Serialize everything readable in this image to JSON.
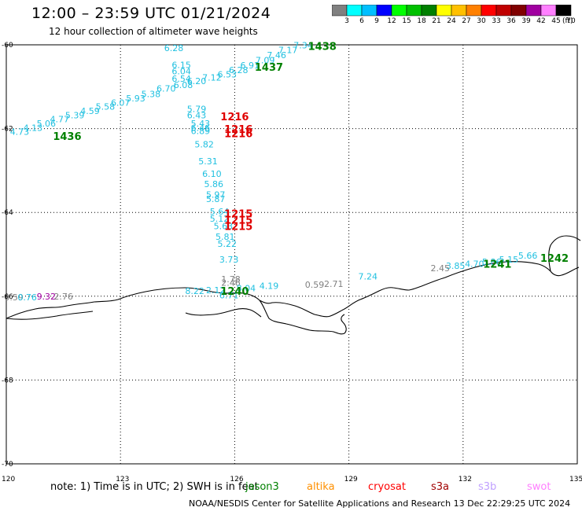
{
  "title": "12:00 – 23:59 UTC 01/21/2024",
  "subtitle": "12 hour collection of altimeter wave heights",
  "colorbar": {
    "unit": "(ft)",
    "colors": [
      "#808080",
      "#00ffff",
      "#00bfff",
      "#0000ff",
      "#00ff00",
      "#00c000",
      "#008000",
      "#ffff00",
      "#ffc000",
      "#ff8000",
      "#ff0000",
      "#c00000",
      "#800000",
      "#a000a0",
      "#ff80ff",
      "#000000"
    ],
    "labels": [
      "3",
      "6",
      "9",
      "12",
      "15",
      "18",
      "21",
      "24",
      "27",
      "30",
      "33",
      "36",
      "39",
      "42",
      "45",
      "70"
    ]
  },
  "axes": {
    "lat_labels": [
      "-60",
      "-62",
      "-64",
      "-66",
      "-68",
      "-70"
    ],
    "lon_labels": [
      "120",
      "123",
      "126",
      "129",
      "132",
      "135"
    ]
  },
  "wave_labels": [
    {
      "text": "6.28",
      "lon": 124.4,
      "lat": -60.15,
      "color": "#20c0e0"
    },
    {
      "text": "6.15",
      "lon": 124.6,
      "lat": -60.55,
      "color": "#20c0e0"
    },
    {
      "text": "6.04",
      "lon": 124.6,
      "lat": -60.7,
      "color": "#20c0e0"
    },
    {
      "text": "7.12",
      "lon": 125.4,
      "lat": -60.85,
      "color": "#20c0e0"
    },
    {
      "text": "6.53",
      "lon": 125.8,
      "lat": -60.78,
      "color": "#20c0e0"
    },
    {
      "text": "6.28",
      "lon": 126.1,
      "lat": -60.68,
      "color": "#20c0e0"
    },
    {
      "text": "6.91",
      "lon": 126.4,
      "lat": -60.56,
      "color": "#20c0e0"
    },
    {
      "text": "7.09",
      "lon": 126.8,
      "lat": -60.44,
      "color": "#20c0e0"
    },
    {
      "text": "7.46",
      "lon": 127.1,
      "lat": -60.32,
      "color": "#20c0e0"
    },
    {
      "text": "7.17",
      "lon": 127.4,
      "lat": -60.2,
      "color": "#20c0e0"
    },
    {
      "text": "7.34",
      "lon": 127.8,
      "lat": -60.08,
      "color": "#20c0e0"
    },
    {
      "text": "6.54",
      "lon": 124.6,
      "lat": -60.88,
      "color": "#20c0e0"
    },
    {
      "text": "6.20",
      "lon": 125.0,
      "lat": -60.94,
      "color": "#20c0e0"
    },
    {
      "text": "6.08",
      "lon": 124.65,
      "lat": -61.03,
      "color": "#20c0e0"
    },
    {
      "text": "6.70",
      "lon": 124.2,
      "lat": -61.12,
      "color": "#20c0e0"
    },
    {
      "text": "5.38",
      "lon": 123.8,
      "lat": -61.25,
      "color": "#20c0e0"
    },
    {
      "text": "5.93",
      "lon": 123.4,
      "lat": -61.35,
      "color": "#20c0e0"
    },
    {
      "text": "6.07",
      "lon": 123.0,
      "lat": -61.45,
      "color": "#20c0e0"
    },
    {
      "text": "5.58",
      "lon": 122.6,
      "lat": -61.55,
      "color": "#20c0e0"
    },
    {
      "text": "4.59",
      "lon": 122.2,
      "lat": -61.65,
      "color": "#20c0e0"
    },
    {
      "text": "5.39",
      "lon": 121.8,
      "lat": -61.75,
      "color": "#20c0e0"
    },
    {
      "text": "4.77",
      "lon": 121.4,
      "lat": -61.85,
      "color": "#20c0e0"
    },
    {
      "text": "5.06",
      "lon": 121.05,
      "lat": -61.95,
      "color": "#20c0e0"
    },
    {
      "text": "4.13",
      "lon": 120.7,
      "lat": -62.05,
      "color": "#20c0e0"
    },
    {
      "text": "4.73",
      "lon": 120.35,
      "lat": -62.15,
      "color": "#20c0e0"
    },
    {
      "text": "5.79",
      "lon": 125.0,
      "lat": -61.6,
      "color": "#20c0e0"
    },
    {
      "text": "6.43",
      "lon": 125.0,
      "lat": -61.75,
      "color": "#20c0e0"
    },
    {
      "text": "5.43",
      "lon": 125.1,
      "lat": -61.95,
      "color": "#20c0e0"
    },
    {
      "text": "6.46",
      "lon": 125.1,
      "lat": -62.05,
      "color": "#20c0e0"
    },
    {
      "text": "6.89",
      "lon": 125.1,
      "lat": -62.13,
      "color": "#20c0e0"
    },
    {
      "text": "5.82",
      "lon": 125.2,
      "lat": -62.45,
      "color": "#20c0e0"
    },
    {
      "text": "5.31",
      "lon": 125.3,
      "lat": -62.85,
      "color": "#20c0e0"
    },
    {
      "text": "6.10",
      "lon": 125.4,
      "lat": -63.15,
      "color": "#20c0e0"
    },
    {
      "text": "5.86",
      "lon": 125.45,
      "lat": -63.4,
      "color": "#20c0e0"
    },
    {
      "text": "5.97",
      "lon": 125.5,
      "lat": -63.65,
      "color": "#20c0e0"
    },
    {
      "text": "5.87",
      "lon": 125.5,
      "lat": -63.75,
      "color": "#20c0e0"
    },
    {
      "text": "5.64",
      "lon": 125.6,
      "lat": -64.05,
      "color": "#20c0e0"
    },
    {
      "text": "5.12",
      "lon": 125.6,
      "lat": -64.22,
      "color": "#20c0e0"
    },
    {
      "text": "5.63",
      "lon": 125.7,
      "lat": -64.4,
      "color": "#20c0e0"
    },
    {
      "text": "5.81",
      "lon": 125.75,
      "lat": -64.65,
      "color": "#20c0e0"
    },
    {
      "text": "5.22",
      "lon": 125.8,
      "lat": -64.82,
      "color": "#20c0e0"
    },
    {
      "text": "3.73",
      "lon": 125.85,
      "lat": -65.2,
      "color": "#20c0e0"
    },
    {
      "text": "4.19",
      "lon": 126.9,
      "lat": -65.83,
      "color": "#20c0e0"
    },
    {
      "text": "8.22",
      "lon": 124.95,
      "lat": -65.95,
      "color": "#20c0e0"
    },
    {
      "text": "7.24",
      "lon": 129.5,
      "lat": -65.6,
      "color": "#20c0e0"
    },
    {
      "text": "3.85",
      "lon": 131.8,
      "lat": -65.35,
      "color": "#20c0e0"
    },
    {
      "text": "4.70",
      "lon": 132.3,
      "lat": -65.3,
      "color": "#20c0e0"
    },
    {
      "text": "5.86",
      "lon": 132.75,
      "lat": -65.25,
      "color": "#20c0e0"
    },
    {
      "text": "5.15",
      "lon": 133.2,
      "lat": -65.2,
      "color": "#20c0e0"
    },
    {
      "text": "5.66",
      "lon": 133.7,
      "lat": -65.1,
      "color": "#20c0e0"
    },
    {
      "text": "0.59",
      "lon": 120.2,
      "lat": -66.1,
      "color": "#808080"
    },
    {
      "text": "0.76",
      "lon": 120.55,
      "lat": -66.1,
      "color": "#20c0e0"
    },
    {
      "text": "2.76",
      "lon": 121.5,
      "lat": -66.08,
      "color": "#808080"
    },
    {
      "text": "0.59",
      "lon": 128.1,
      "lat": -65.8,
      "color": "#808080"
    },
    {
      "text": "2.71",
      "lon": 128.6,
      "lat": -65.78,
      "color": "#808080"
    },
    {
      "text": "2.45",
      "lon": 131.4,
      "lat": -65.4,
      "color": "#808080"
    },
    {
      "text": "1.78",
      "lon": 125.9,
      "lat": -65.67,
      "color": "#808080"
    },
    {
      "text": "2.46",
      "lon": 125.9,
      "lat": -65.75,
      "color": "#808080"
    },
    {
      "text": "9.32",
      "lon": 121.05,
      "lat": -66.08,
      "color": "#a000a0"
    },
    {
      "text": "2.12",
      "lon": 125.5,
      "lat": -65.93,
      "color": "#20c0e0"
    },
    {
      "text": "8.04",
      "lon": 126.3,
      "lat": -65.88,
      "color": "#20c0e0"
    },
    {
      "text": "6.71",
      "lon": 125.85,
      "lat": -66.05,
      "color": "#20c0e0"
    }
  ],
  "time_labels": [
    {
      "text": "1438",
      "lon": 128.3,
      "lat": -60.12,
      "color": "#008000"
    },
    {
      "text": "1437",
      "lon": 126.9,
      "lat": -60.62,
      "color": "#008000"
    },
    {
      "text": "1436",
      "lon": 121.6,
      "lat": -62.27,
      "color": "#008000"
    },
    {
      "text": "1216",
      "lon": 126.0,
      "lat": -61.8,
      "color": "#e00000"
    },
    {
      "text": "1216",
      "lon": 126.1,
      "lat": -62.1,
      "color": "#e00000"
    },
    {
      "text": "1216",
      "lon": 126.1,
      "lat": -62.2,
      "color": "#e00000"
    },
    {
      "text": "1215",
      "lon": 126.1,
      "lat": -64.12,
      "color": "#e00000"
    },
    {
      "text": "1215",
      "lon": 126.1,
      "lat": -64.27,
      "color": "#e00000"
    },
    {
      "text": "1215",
      "lon": 126.1,
      "lat": -64.42,
      "color": "#e00000"
    },
    {
      "text": "1240",
      "lon": 126.0,
      "lat": -65.97,
      "color": "#008000"
    },
    {
      "text": "1241",
      "lon": 132.9,
      "lat": -65.32,
      "color": "#008000"
    },
    {
      "text": "1242",
      "lon": 134.4,
      "lat": -65.18,
      "color": "#008000"
    }
  ],
  "footer": {
    "note": "note:  1) Time is in UTC; 2) SWH is in feet",
    "satellites": [
      {
        "name": "jason3",
        "color": "#008000"
      },
      {
        "name": "altika",
        "color": "#ff9000"
      },
      {
        "name": "cryosat",
        "color": "#ff0000"
      },
      {
        "name": "s3a",
        "color": "#a00000"
      },
      {
        "name": "s3b",
        "color": "#c0a0ff"
      },
      {
        "name": "swot",
        "color": "#ff80ff"
      }
    ],
    "credit": "NOAA/NESDIS Center for Satellite Applications and Research     13 Dec 22:29:25 UTC 2024"
  }
}
